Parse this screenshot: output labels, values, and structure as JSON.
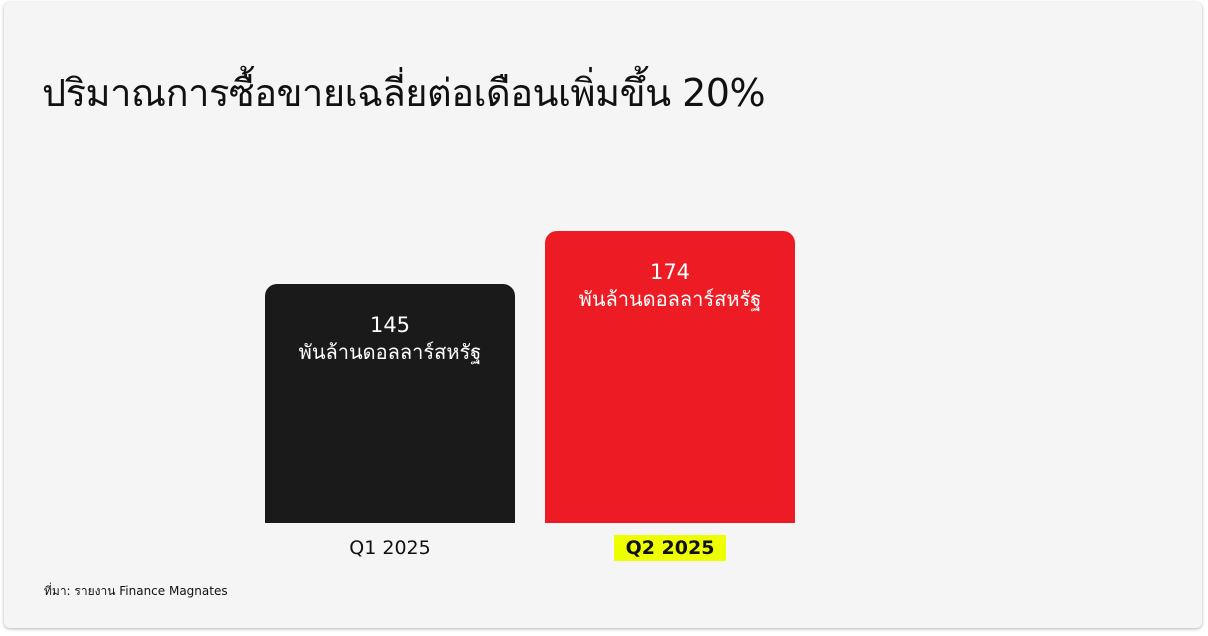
{
  "title": "ปริมาณการซื้อขายเฉลี่ยต่อเดือนเพิ่มขึ้น 20%",
  "source": "ที่มา: รายงาน Finance Magnates",
  "chart_data": {
    "type": "bar",
    "title": "ปริมาณการซื้อขายเฉลี่ยต่อเดือนเพิ่มขึ้น 20%",
    "categories": [
      "Q1 2025",
      "Q2 2025"
    ],
    "values": [
      145,
      174
    ],
    "data_labels": [
      "145",
      "174"
    ],
    "unit_label": "พันล้านดอลลาร์สหรัฐ",
    "colors": [
      "#1a1a1a",
      "#ed1c24"
    ],
    "highlight_category": "Q2 2025",
    "highlight_color": "#eeff00",
    "grid": false,
    "ylim": [
      0,
      174
    ]
  }
}
